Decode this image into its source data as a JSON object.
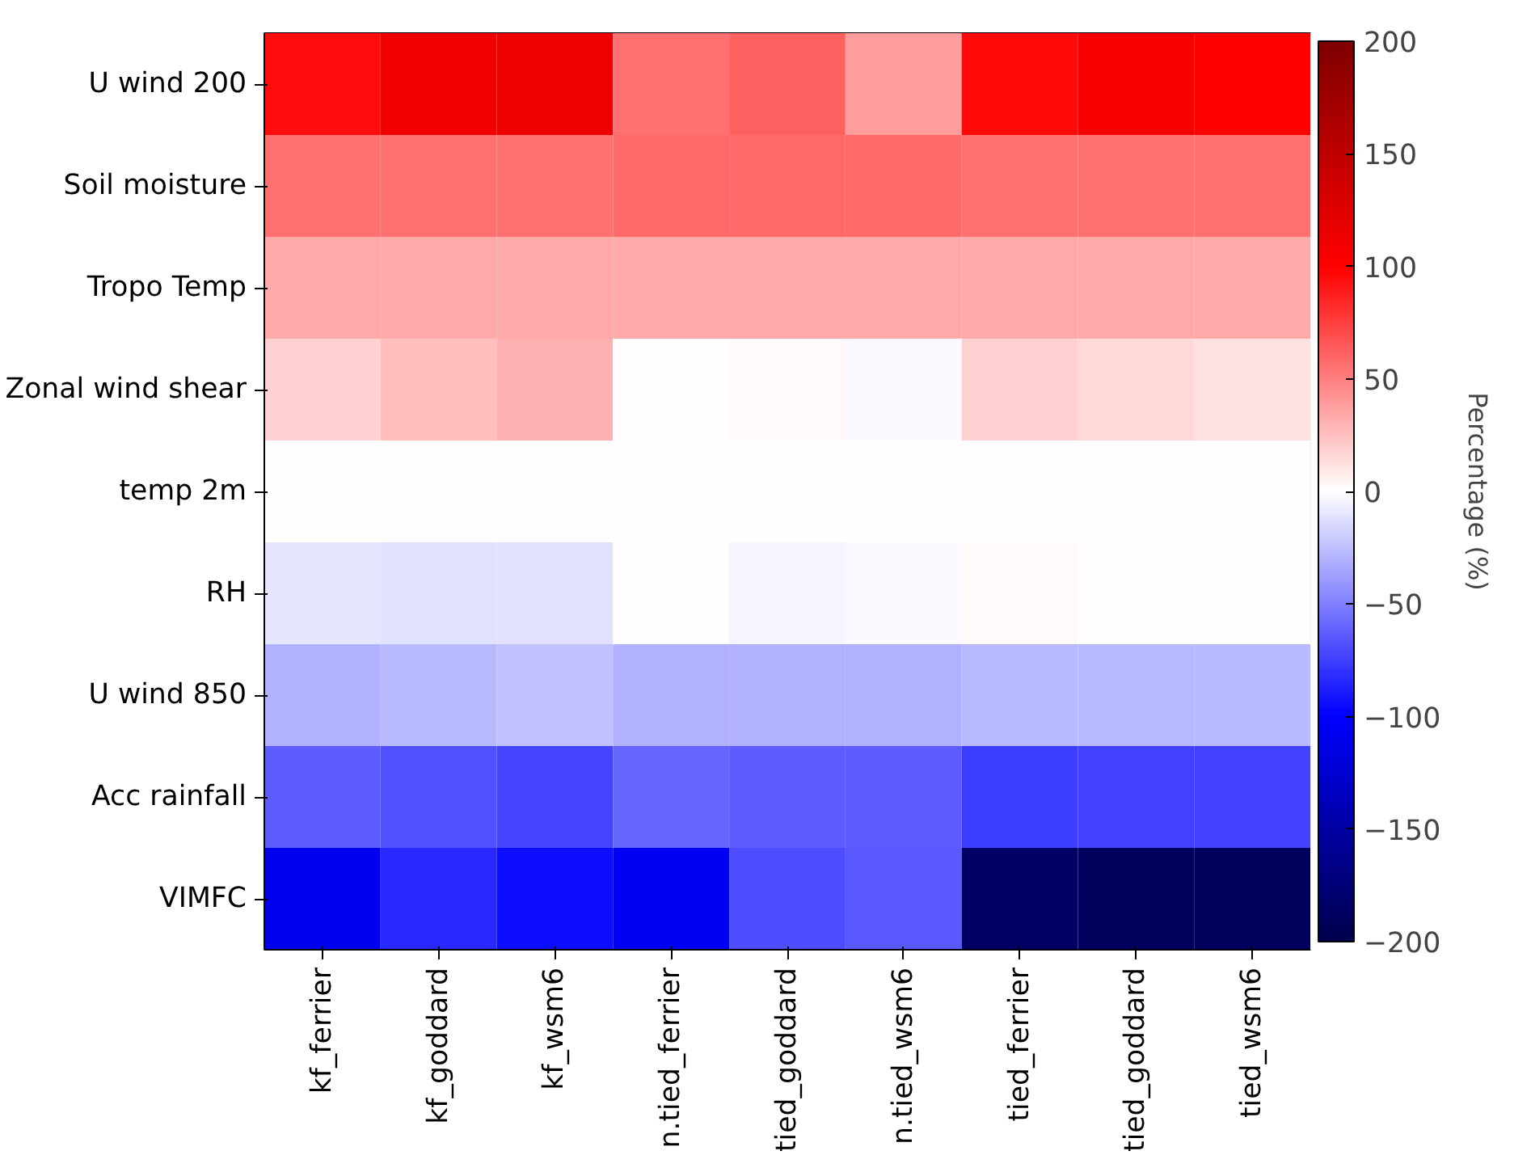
{
  "chart_data": {
    "type": "heatmap",
    "categories": [
      "kf_ferrier",
      "kf_goddard",
      "kf_wsm6",
      "n.tied_ferrier",
      "tied_goddard",
      "n.tied_wsm6",
      "tied_ferrier",
      "tied_goddard",
      "tied_wsm6"
    ],
    "y_categories": [
      "U wind 200",
      "Soil moisture",
      "Tropo Temp",
      "Zonal wind shear",
      "temp 2m",
      "RH",
      "U wind 850",
      "Acc rainfall",
      "VIMFC"
    ],
    "cells": [
      [
        94,
        110,
        115,
        56,
        62,
        38,
        96,
        105,
        100
      ],
      [
        56,
        56,
        56,
        58,
        58,
        58,
        56,
        56,
        56
      ],
      [
        33,
        33,
        33,
        33,
        33,
        33,
        33,
        33,
        33
      ],
      [
        18,
        25,
        30,
        0,
        3,
        -3,
        18,
        15,
        12
      ],
      [
        1,
        1,
        1,
        1,
        1,
        1,
        1,
        1,
        1
      ],
      [
        -10,
        -12,
        -12,
        0,
        -4,
        -2,
        2,
        0,
        0
      ],
      [
        -30,
        -27,
        -25,
        -30,
        -30,
        -30,
        -28,
        -28,
        -28
      ],
      [
        -64,
        -68,
        -72,
        -60,
        -63,
        -63,
        -76,
        -74,
        -74
      ],
      [
        -108,
        -84,
        -94,
        -105,
        -69,
        -65,
        -185,
        -190,
        -190
      ]
    ],
    "clim": [
      -200,
      200
    ],
    "cticks": [
      {
        "value": -200,
        "label": "−200"
      },
      {
        "value": -150,
        "label": "−150"
      },
      {
        "value": -100,
        "label": "−100"
      },
      {
        "value": -50,
        "label": "−50"
      },
      0,
      50,
      100,
      150,
      200
    ],
    "clabel": "Percentage (%)"
  }
}
